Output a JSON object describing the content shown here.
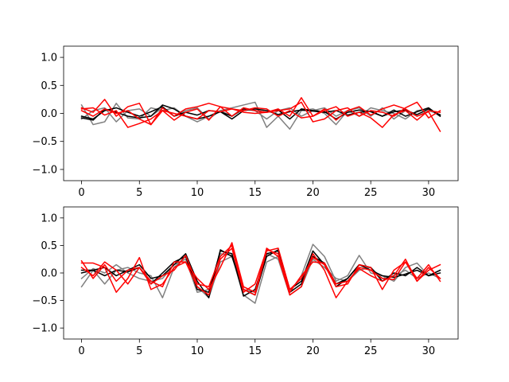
{
  "chart_data": [
    {
      "type": "line",
      "title": "",
      "xlabel": "",
      "ylabel": "",
      "xlim": [
        -1.55,
        32.55
      ],
      "ylim": [
        -1.2,
        1.2
      ],
      "xticks": [
        0,
        5,
        10,
        15,
        20,
        25,
        30
      ],
      "yticks": [
        -1.0,
        -0.5,
        0.0,
        0.5,
        1.0
      ],
      "xtick_labels": [
        "0",
        "5",
        "10",
        "15",
        "20",
        "25",
        "30"
      ],
      "ytick_labels": [
        "−1.0",
        "−0.5",
        "0.0",
        "0.5",
        "1.0"
      ],
      "grid": false,
      "x": [
        0,
        1,
        2,
        3,
        4,
        5,
        6,
        7,
        8,
        9,
        10,
        11,
        12,
        13,
        14,
        15,
        16,
        17,
        18,
        19,
        20,
        21,
        22,
        23,
        24,
        25,
        26,
        27,
        28,
        29,
        30,
        31
      ],
      "series": [
        {
          "color": "#808080",
          "values": [
            0.15,
            -0.2,
            -0.15,
            0.18,
            -0.08,
            -0.1,
            0.1,
            0.05,
            0.1,
            -0.05,
            -0.15,
            -0.05,
            0.05,
            0.1,
            0.15,
            0.2,
            -0.25,
            -0.05,
            -0.28,
            0.05,
            0.08,
            0.0,
            -0.2,
            0.05,
            -0.05,
            0.1,
            0.05,
            0.0,
            -0.1,
            0.05,
            0.08,
            -0.05
          ]
        },
        {
          "color": "#808080",
          "values": [
            -0.1,
            0.05,
            0.1,
            -0.15,
            0.05,
            0.08,
            -0.05,
            0.1,
            -0.05,
            0.05,
            0.1,
            -0.1,
            0.05,
            -0.05,
            0.1,
            0.05,
            -0.1,
            0.05,
            0.1,
            -0.05,
            0.05,
            0.1,
            -0.05,
            0.05,
            0.1,
            -0.05,
            0.1,
            -0.1,
            0.05,
            -0.05,
            0.05,
            -0.02
          ]
        },
        {
          "color": "#000000",
          "values": [
            -0.05,
            -0.1,
            0.05,
            0.1,
            0.02,
            -0.05,
            0.03,
            0.12,
            -0.05,
            0.02,
            -0.03,
            0.05,
            0.03,
            -0.1,
            0.05,
            0.08,
            0.05,
            -0.02,
            0.03,
            0.06,
            0.04,
            0.02,
            0.05,
            -0.03,
            0.02,
            0.04,
            -0.05,
            0.03,
            0.06,
            -0.02,
            0.08,
            -0.03
          ]
        },
        {
          "color": "#000000",
          "values": [
            -0.08,
            -0.12,
            0.08,
            0.02,
            -0.05,
            -0.08,
            -0.05,
            0.15,
            0.08,
            -0.05,
            -0.1,
            -0.05,
            0.03,
            -0.05,
            0.08,
            0.05,
            0.02,
            0.06,
            -0.1,
            0.08,
            0.05,
            0.03,
            -0.1,
            0.02,
            0.06,
            0.03,
            -0.05,
            0.06,
            -0.05,
            0.03,
            0.1,
            -0.05
          ]
        },
        {
          "color": "#ff0000",
          "values": [
            0.1,
            0.02,
            0.25,
            -0.05,
            0.12,
            0.18,
            -0.2,
            0.1,
            -0.05,
            0.08,
            0.12,
            0.18,
            0.12,
            -0.05,
            0.1,
            0.05,
            0.02,
            0.08,
            -0.05,
            0.28,
            -0.05,
            0.08,
            -0.12,
            0.05,
            0.12,
            -0.03,
            0.08,
            0.15,
            0.08,
            -0.05,
            0.03,
            -0.32
          ]
        },
        {
          "color": "#ff0000",
          "values": [
            0.08,
            0.1,
            -0.03,
            0.05,
            -0.25,
            -0.18,
            -0.1,
            0.05,
            -0.12,
            0.02,
            0.08,
            -0.12,
            0.12,
            0.08,
            0.05,
            0.1,
            0.08,
            -0.05,
            0.05,
            -0.08,
            -0.05,
            0.05,
            0.12,
            -0.05,
            0.02,
            -0.08,
            -0.25,
            -0.02,
            0.05,
            -0.12,
            0.05,
            0.02
          ]
        },
        {
          "color": "#ff0000",
          "values": [
            0.05,
            -0.05,
            0.08,
            0.0,
            0.05,
            -0.1,
            -0.2,
            0.05,
            0.0,
            -0.05,
            -0.1,
            0.05,
            0.03,
            0.08,
            0.02,
            0.0,
            0.02,
            0.05,
            0.08,
            0.2,
            -0.15,
            -0.1,
            0.05,
            0.1,
            -0.05,
            0.05,
            0.02,
            -0.05,
            0.1,
            0.2,
            -0.08,
            0.05
          ]
        }
      ]
    },
    {
      "type": "line",
      "title": "",
      "xlabel": "",
      "ylabel": "",
      "xlim": [
        -1.55,
        32.55
      ],
      "ylim": [
        -1.2,
        1.2
      ],
      "xticks": [
        0,
        5,
        10,
        15,
        20,
        25,
        30
      ],
      "yticks": [
        -1.0,
        -0.5,
        0.0,
        0.5,
        1.0
      ],
      "xtick_labels": [
        "0",
        "5",
        "10",
        "15",
        "20",
        "25",
        "30"
      ],
      "ytick_labels": [
        "−1.0",
        "−0.5",
        "0.0",
        "0.5",
        "1.0"
      ],
      "grid": false,
      "x": [
        0,
        1,
        2,
        3,
        4,
        5,
        6,
        7,
        8,
        9,
        10,
        11,
        12,
        13,
        14,
        15,
        16,
        17,
        18,
        19,
        20,
        21,
        22,
        23,
        24,
        25,
        26,
        27,
        28,
        29,
        30,
        31
      ],
      "series": [
        {
          "color": "#808080",
          "values": [
            -0.25,
            0.05,
            -0.2,
            0.05,
            0.1,
            0.0,
            -0.05,
            -0.45,
            0.1,
            0.3,
            -0.25,
            -0.45,
            0.2,
            0.3,
            -0.4,
            -0.55,
            0.2,
            0.3,
            -0.35,
            -0.05,
            0.52,
            0.3,
            -0.15,
            -0.05,
            0.32,
            0.0,
            -0.05,
            -0.15,
            0.1,
            0.18,
            -0.05,
            0.05
          ]
        },
        {
          "color": "#808080",
          "values": [
            -0.1,
            0.08,
            0.0,
            0.15,
            0.0,
            -0.1,
            -0.15,
            -0.1,
            0.15,
            0.25,
            -0.35,
            -0.3,
            0.35,
            0.32,
            -0.3,
            -0.35,
            0.35,
            0.25,
            -0.4,
            -0.25,
            0.25,
            0.1,
            -0.1,
            -0.15,
            0.05,
            0.1,
            -0.1,
            -0.05,
            0.05,
            -0.1,
            0.0,
            -0.1
          ]
        },
        {
          "color": "#000000",
          "values": [
            0.0,
            0.05,
            -0.05,
            0.05,
            0.02,
            0.1,
            -0.2,
            0.0,
            0.2,
            0.3,
            -0.3,
            -0.35,
            0.4,
            0.35,
            -0.42,
            -0.3,
            0.35,
            0.4,
            -0.35,
            -0.2,
            0.3,
            0.18,
            -0.2,
            -0.1,
            0.15,
            0.05,
            -0.05,
            -0.08,
            -0.02,
            0.05,
            -0.05,
            0.05
          ]
        },
        {
          "color": "#000000",
          "values": [
            0.05,
            0.05,
            0.1,
            -0.05,
            0.05,
            0.15,
            -0.1,
            -0.05,
            0.15,
            0.35,
            -0.15,
            -0.45,
            0.42,
            0.3,
            -0.3,
            -0.4,
            0.3,
            0.42,
            -0.3,
            -0.15,
            0.4,
            0.15,
            -0.25,
            -0.1,
            0.15,
            0.1,
            -0.15,
            0.0,
            -0.05,
            0.1,
            -0.05,
            0.0
          ]
        },
        {
          "color": "#ff0000",
          "values": [
            0.18,
            0.18,
            0.1,
            -0.35,
            -0.1,
            0.28,
            -0.3,
            -0.2,
            0.1,
            0.2,
            -0.1,
            -0.3,
            0.1,
            0.55,
            -0.25,
            -0.35,
            0.45,
            0.3,
            -0.4,
            -0.25,
            0.35,
            0.05,
            -0.45,
            -0.15,
            0.08,
            -0.05,
            -0.15,
            -0.05,
            0.25,
            -0.15,
            0.05,
            0.15
          ]
        },
        {
          "color": "#ff0000",
          "values": [
            0.22,
            -0.1,
            0.15,
            -0.15,
            0.05,
            0.1,
            -0.2,
            -0.05,
            0.05,
            0.32,
            -0.2,
            -0.25,
            0.3,
            0.5,
            -0.3,
            -0.4,
            0.4,
            0.45,
            -0.3,
            -0.1,
            0.28,
            0.15,
            -0.25,
            -0.2,
            0.15,
            0.1,
            -0.3,
            0.05,
            0.2,
            -0.15,
            0.1,
            -0.1
          ]
        },
        {
          "color": "#ff0000",
          "values": [
            0.1,
            -0.05,
            0.2,
            0.05,
            -0.2,
            0.1,
            -0.15,
            -0.25,
            0.2,
            0.2,
            -0.25,
            -0.4,
            0.25,
            0.45,
            -0.35,
            -0.2,
            0.42,
            0.35,
            -0.35,
            -0.05,
            0.2,
            0.18,
            -0.2,
            -0.15,
            0.1,
            0.05,
            -0.1,
            -0.12,
            0.2,
            -0.1,
            0.15,
            -0.15
          ]
        }
      ]
    }
  ]
}
